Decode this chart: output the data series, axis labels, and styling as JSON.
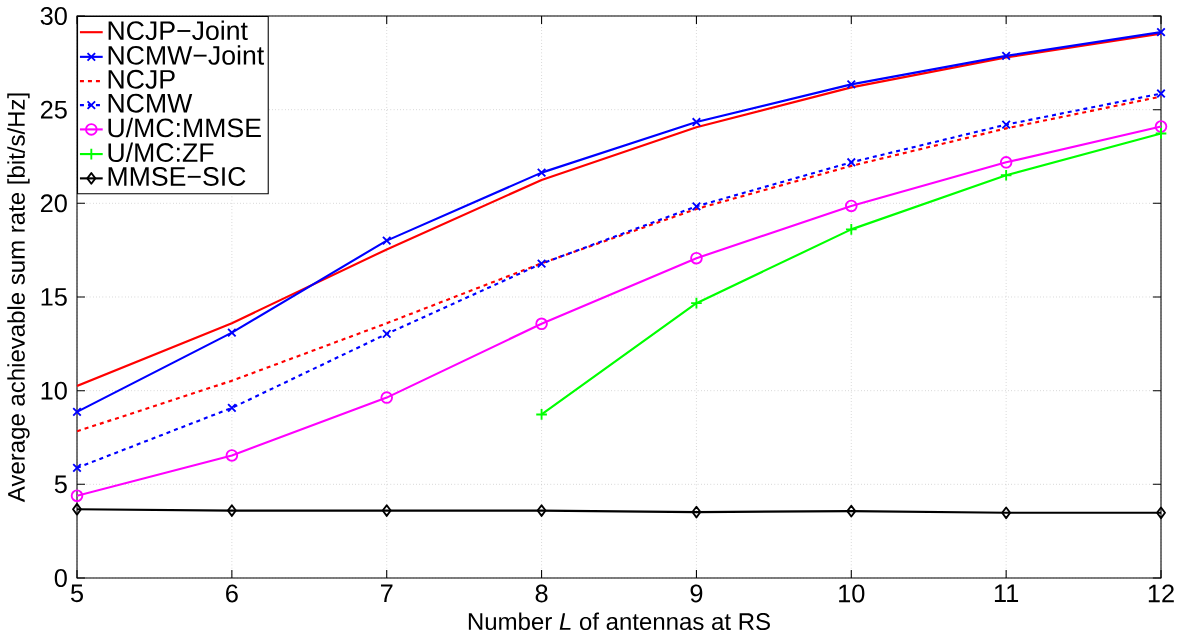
{
  "chart_data": {
    "type": "line",
    "xlabel": "Number *L* of antennas at RS",
    "ylabel": "Average achievable sum rate [bit/s/Hz]",
    "x": [
      5,
      6,
      7,
      8,
      9,
      10,
      11,
      12
    ],
    "series": [
      {
        "name": "NCJP−Joint",
        "color": "#ff0000",
        "marker": "none",
        "line_style": "solid",
        "values": [
          10.25,
          13.6,
          17.54,
          21.25,
          24.06,
          26.19,
          27.79,
          29.06
        ]
      },
      {
        "name": "NCMW−Joint",
        "color": "#0000ff",
        "marker": "cross",
        "line_style": "solid",
        "values": [
          8.87,
          13.1,
          18.01,
          21.64,
          24.34,
          26.35,
          27.87,
          29.14
        ]
      },
      {
        "name": "NCJP",
        "color": "#ff0000",
        "marker": "none",
        "line_style": "dashed",
        "values": [
          7.83,
          10.53,
          13.6,
          16.8,
          19.7,
          22.0,
          24.0,
          25.7
        ]
      },
      {
        "name": "NCMW",
        "color": "#0000ff",
        "marker": "cross",
        "line_style": "dashed",
        "values": [
          5.88,
          9.08,
          13.03,
          16.78,
          19.84,
          22.19,
          24.2,
          25.86
        ]
      },
      {
        "name": "U/MC:MMSE",
        "color": "#ff00ff",
        "marker": "circle",
        "line_style": "solid",
        "values": [
          4.39,
          6.54,
          9.63,
          13.57,
          17.07,
          19.86,
          22.19,
          24.1
        ]
      },
      {
        "name": "U/MC:ZF",
        "color": "#00ff00",
        "marker": "plus",
        "line_style": "solid",
        "values": [
          null,
          null,
          null,
          8.73,
          14.67,
          18.61,
          21.5,
          23.73
        ]
      },
      {
        "name": "MMSE−SIC",
        "color": "#000000",
        "marker": "diamond",
        "line_style": "solid",
        "values": [
          3.67,
          3.6,
          3.6,
          3.6,
          3.52,
          3.57,
          3.48,
          3.48
        ]
      }
    ],
    "xlim": [
      5,
      12
    ],
    "ylim": [
      0,
      30
    ],
    "xticks": [
      5,
      6,
      7,
      8,
      9,
      10,
      11,
      12
    ],
    "yticks": [
      0,
      5,
      10,
      15,
      20,
      25,
      30
    ],
    "grid": true,
    "legend": "top left"
  }
}
